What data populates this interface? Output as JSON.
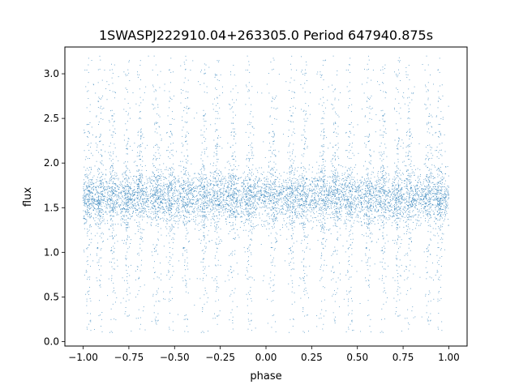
{
  "chart_data": {
    "type": "scatter",
    "title": "1SWASPJ222910.04+263305.0 Period 647940.875s",
    "xlabel": "phase",
    "ylabel": "flux",
    "xlim": [
      -1.1,
      1.1
    ],
    "ylim": [
      -0.05,
      3.3
    ],
    "xticks": [
      -1.0,
      -0.75,
      -0.5,
      -0.25,
      0.0,
      0.25,
      0.5,
      0.75,
      1.0
    ],
    "xtick_labels": [
      "−1.00",
      "−0.75",
      "−0.50",
      "−0.25",
      "0.00",
      "0.25",
      "0.50",
      "0.75",
      "1.00"
    ],
    "yticks": [
      0.0,
      0.5,
      1.0,
      1.5,
      2.0,
      2.5,
      3.0
    ],
    "ytick_labels": [
      "0.0",
      "0.5",
      "1.0",
      "1.5",
      "2.0",
      "2.5",
      "3.0"
    ],
    "grid": false,
    "legend": "none",
    "series": [
      {
        "marker_color": "#1f77b4",
        "x_range": [
          -1.0,
          1.0
        ],
        "median_flux": 1.62,
        "core_flux_range": [
          1.3,
          2.0
        ],
        "flux_range": [
          0.1,
          3.2
        ],
        "vertical_streak_phases": [
          -0.97,
          -0.91,
          -0.84,
          -0.76,
          -0.69,
          -0.6,
          -0.52,
          -0.44,
          -0.34,
          -0.27,
          -0.18,
          -0.09,
          0.04,
          0.14,
          0.21,
          0.31,
          0.38,
          0.46,
          0.56,
          0.64,
          0.72,
          0.78,
          0.89,
          0.95
        ]
      }
    ]
  }
}
